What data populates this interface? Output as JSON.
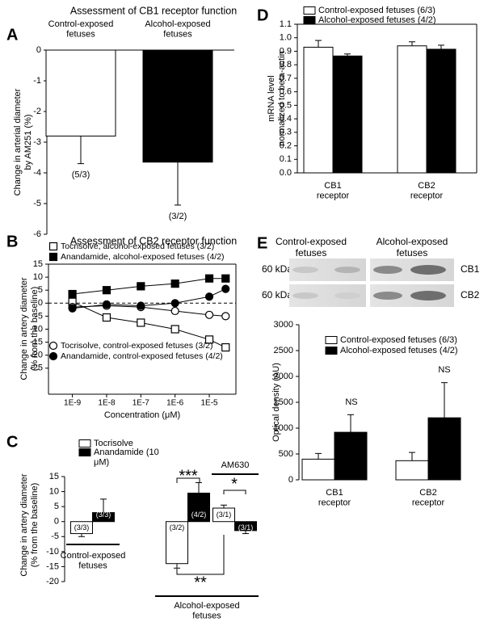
{
  "chart_data": [
    {
      "panel": "A",
      "type": "bar",
      "title": "Assessment of CB1 receptor function",
      "categories": [
        "Control-exposed fetuses",
        "Alcohol-exposed fetuses"
      ],
      "values": [
        -2.8,
        -3.65
      ],
      "errors": [
        0.9,
        1.4
      ],
      "n_labels": [
        "(5/3)",
        "(3/2)"
      ],
      "colors": [
        "#ffffff",
        "#000000"
      ],
      "ylabel": [
        "Change in arterial diameter",
        "by AM251 (%)"
      ],
      "ylim": [
        -6,
        0
      ],
      "yticks": [
        0,
        -1,
        -2,
        -3,
        -4,
        -5,
        -6
      ]
    },
    {
      "panel": "B",
      "type": "line",
      "title": "Assessment of CB2 receptor function",
      "x": [
        1e-09,
        1e-08,
        1e-07,
        1e-06,
        1e-05,
        3e-05
      ],
      "log_x": true,
      "xlim": [
        2e-10,
        6e-05
      ],
      "xticks": [
        {
          "value": 1e-09,
          "label": "1E-9"
        },
        {
          "value": 1e-08,
          "label": "1E-8"
        },
        {
          "value": 1e-07,
          "label": "1E-7"
        },
        {
          "value": 1e-06,
          "label": "1E-6"
        },
        {
          "value": 1e-05,
          "label": "1E-5"
        }
      ],
      "xlabel": "Concentration (μM)",
      "ylabel": [
        "Change in artery diameter",
        "(% from the baseline)"
      ],
      "ylim": [
        -35,
        15
      ],
      "yticks": [
        -25,
        -20,
        -15,
        -10,
        -5,
        0,
        5,
        10,
        15
      ],
      "series": [
        {
          "name": "Tocrisolve, alcohol-exposed fetuses (3/2)",
          "marker": "square",
          "color": "#ffffff",
          "values": [
            0.5,
            -5.5,
            -7.5,
            -10,
            -14,
            -17
          ]
        },
        {
          "name": "Anandamide, alcohol-exposed fetuses (4/2)",
          "marker": "square",
          "color": "#000000",
          "values": [
            3.5,
            5,
            6.5,
            7.5,
            9.5,
            9.5
          ]
        },
        {
          "name": "Tocrisolve, control-exposed fetuses (3/2)",
          "marker": "circle",
          "color": "#ffffff",
          "values": [
            -1.5,
            -1,
            -1.5,
            -3,
            -4.5,
            -5
          ]
        },
        {
          "name": "Anandamide, control-exposed fetuses (4/2)",
          "marker": "circle",
          "color": "#000000",
          "values": [
            -2,
            -0.5,
            -1,
            0,
            2.5,
            5.5
          ]
        }
      ]
    },
    {
      "panel": "C",
      "type": "bar",
      "categories": [
        null,
        null,
        null
      ],
      "series": [
        {
          "name": "Tocrisolve",
          "color": "#ffffff",
          "values": [
            -4,
            -14,
            4.5
          ],
          "errors": [
            1,
            1.5,
            1
          ],
          "n_labels": [
            "(3/3)",
            "(3/2)",
            "(3/1)"
          ]
        },
        {
          "name": "Anandamide (10 μM)",
          "color": "#000000",
          "values": [
            3,
            9.5,
            -3
          ],
          "errors": [
            4.5,
            3.5,
            1
          ],
          "n_labels": [
            "(3/3)",
            "(4/2)",
            "(3/1)"
          ]
        }
      ],
      "group_labels": [
        "Control-exposed fetuses",
        "Alcohol-exposed fetuses"
      ],
      "annotations": [
        "***",
        "*",
        "**",
        "AM630"
      ],
      "ylabel": [
        "Change in artery diameter",
        "(% from the baseline)"
      ],
      "ylim": [
        -20,
        15
      ],
      "yticks": [
        -20,
        -15,
        -10,
        -5,
        0,
        5,
        10,
        15
      ]
    },
    {
      "panel": "D",
      "type": "bar",
      "categories": [
        "CB1 receptor",
        "CB2 receptor"
      ],
      "series": [
        {
          "name": "Control-exposed fetuses (6/3)",
          "color": "#ffffff",
          "values": [
            0.93,
            0.94
          ],
          "errors": [
            0.05,
            0.03
          ]
        },
        {
          "name": "Alcohol-exposed fetuses (4/2)",
          "color": "#000000",
          "values": [
            0.865,
            0.915
          ],
          "errors": [
            0.015,
            0.03
          ]
        }
      ],
      "ylabel": [
        "mRNA level",
        "normalized to beta-actin"
      ],
      "ylim": [
        0,
        1.1
      ],
      "yticks": [
        {
          "value": 0,
          "label": "0.0"
        },
        0.1,
        0.2,
        0.3,
        0.4,
        0.5,
        0.6,
        0.7,
        0.8,
        0.9,
        {
          "value": 1,
          "label": "1.0"
        },
        1.1
      ]
    },
    {
      "panel": "E",
      "type": "bar",
      "categories": [
        "CB1 receptor",
        "CB2 receptor"
      ],
      "series": [
        {
          "name": "Control-exposed fetuses (6/3)",
          "color": "#ffffff",
          "values": [
            400,
            370
          ],
          "errors": [
            110,
            160
          ]
        },
        {
          "name": "Alcohol-exposed fetuses (4/2)",
          "color": "#000000",
          "values": [
            920,
            1200
          ],
          "errors": [
            340,
            680
          ]
        }
      ],
      "annotations": [
        "NS",
        "NS"
      ],
      "ylabel": [
        "Optical density (AU)"
      ],
      "ylim": [
        0,
        3000
      ],
      "yticks": [
        0,
        500,
        1000,
        1500,
        2000,
        2500,
        3000
      ],
      "blot": {
        "groups": [
          "Control-exposed fetuses",
          "Alcohol-exposed fetuses"
        ],
        "markers": [
          "60 kDa",
          "60 kDa"
        ],
        "proteins": [
          "CB1",
          "CB2"
        ]
      }
    }
  ]
}
